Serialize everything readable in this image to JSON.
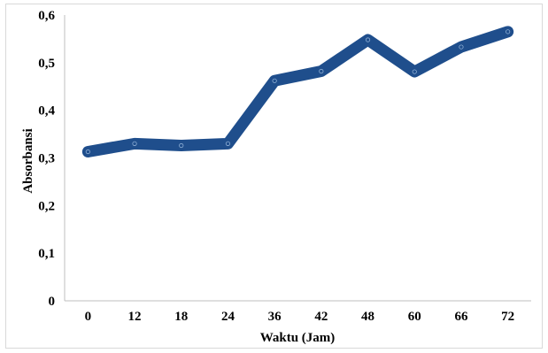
{
  "chart_data": {
    "type": "line",
    "title": "",
    "xlabel": "Waktu (Jam)",
    "ylabel": "Absorbansi",
    "categories": [
      "0",
      "12",
      "18",
      "24",
      "36",
      "42",
      "48",
      "60",
      "66",
      "72"
    ],
    "series": [
      {
        "values": [
          0.313,
          0.33,
          0.326,
          0.33,
          0.462,
          0.482,
          0.548,
          0.481,
          0.533,
          0.565
        ]
      }
    ],
    "y_tick_labels": [
      "0",
      "0,1",
      "0,2",
      "0,3",
      "0,4",
      "0,5",
      "0,6"
    ],
    "ylim": [
      0,
      0.6
    ],
    "grid": false,
    "legend": "none",
    "colors": {
      "line": "#1f4e8c",
      "marker_stroke": "#8fb0d6"
    }
  }
}
